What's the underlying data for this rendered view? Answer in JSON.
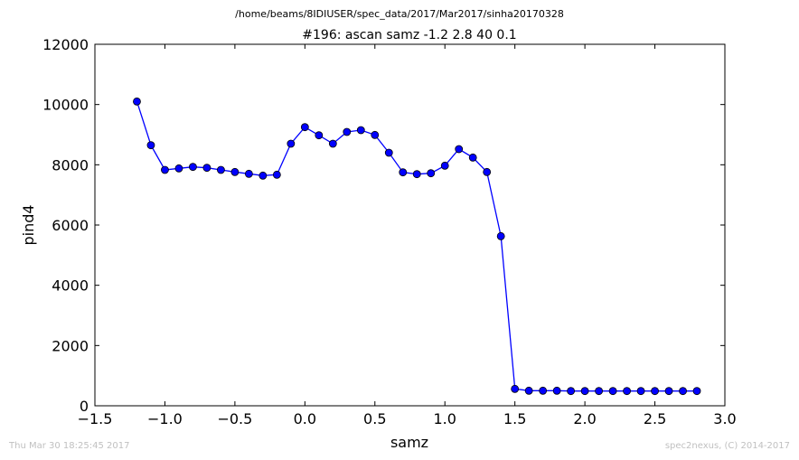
{
  "header": {
    "path": "/home/beams/8IDIUSER/spec_data/2017/Mar2017/sinha20170328"
  },
  "footer": {
    "timestamp": "Thu Mar 30 18:25:45 2017",
    "credit": "spec2nexus, (C) 2014-2017"
  },
  "chart_data": {
    "type": "line",
    "title": "#196: ascan  samz -1.2 2.8  40 0.1",
    "xlabel": "samz",
    "ylabel": "pind4",
    "xlim": [
      -1.5,
      3.0
    ],
    "ylim": [
      0,
      12000
    ],
    "xticks": [
      "−1.5",
      "−1.0",
      "−0.5",
      "0.0",
      "0.5",
      "1.0",
      "1.5",
      "2.0",
      "2.5",
      "3.0"
    ],
    "yticks": [
      "0",
      "2000",
      "4000",
      "6000",
      "8000",
      "10000",
      "12000"
    ],
    "grid": false,
    "series_color": "#0000ff",
    "marker": "circle",
    "x": [
      -1.2,
      -1.1,
      -1.0,
      -0.9,
      -0.8,
      -0.7,
      -0.6,
      -0.5,
      -0.4,
      -0.3,
      -0.2,
      -0.1,
      0.0,
      0.1,
      0.2,
      0.3,
      0.4,
      0.5,
      0.6,
      0.7,
      0.8,
      0.9,
      1.0,
      1.1,
      1.2,
      1.3,
      1.4,
      1.5,
      1.6,
      1.7,
      1.8,
      1.9,
      2.0,
      2.1,
      2.2,
      2.3,
      2.4,
      2.5,
      2.6,
      2.7,
      2.8
    ],
    "y": [
      10100,
      8650,
      7830,
      7880,
      7930,
      7900,
      7830,
      7760,
      7700,
      7640,
      7670,
      8700,
      9250,
      8980,
      8700,
      9090,
      9150,
      8990,
      8400,
      7750,
      7690,
      7720,
      7970,
      8520,
      8240,
      7760,
      5630,
      560,
      500,
      500,
      500,
      490,
      490,
      490,
      490,
      490,
      490,
      490,
      490,
      490,
      490
    ]
  }
}
